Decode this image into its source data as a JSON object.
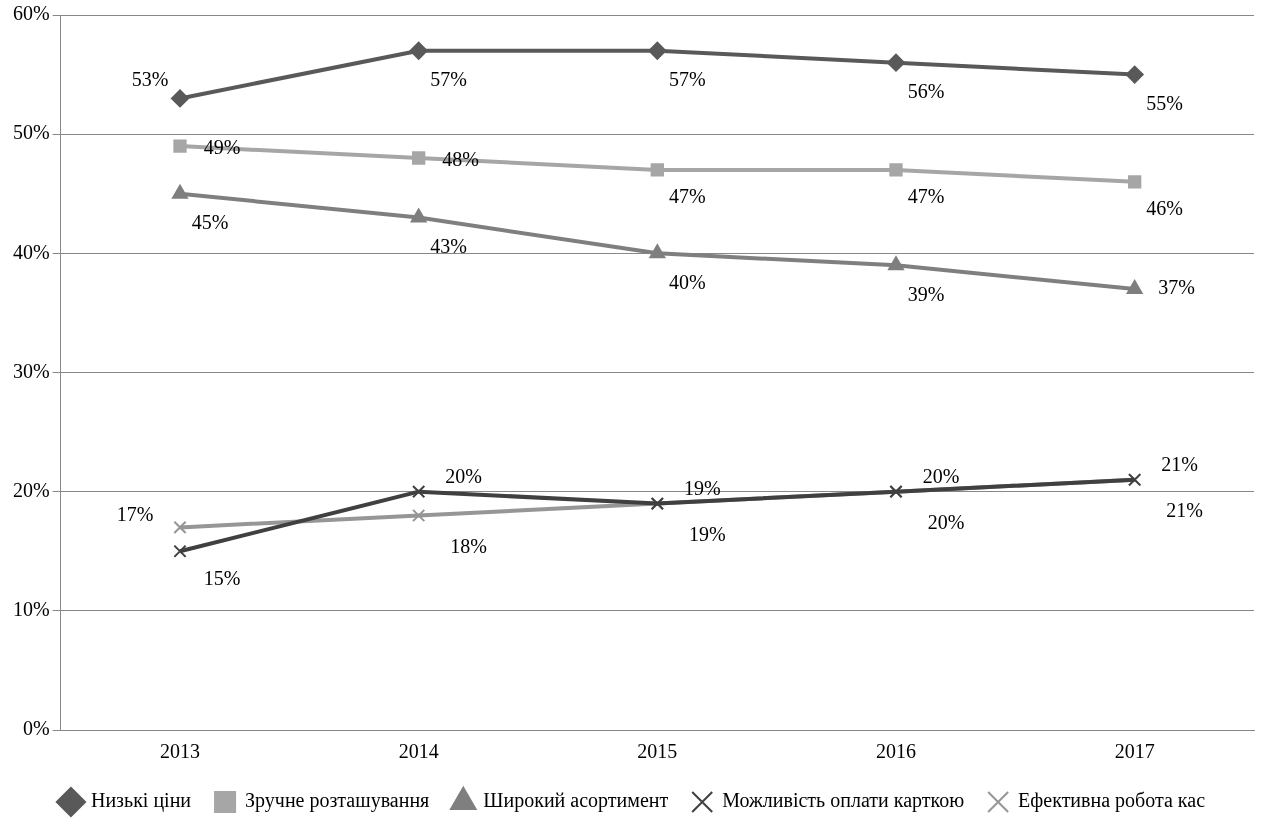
{
  "chart_data": {
    "type": "line",
    "categories": [
      "2013",
      "2014",
      "2015",
      "2016",
      "2017"
    ],
    "series": [
      {
        "name": "Низькі ціни",
        "color": "#595959",
        "marker": "diamond",
        "values": [
          53,
          57,
          57,
          56,
          55
        ],
        "value_labels": [
          "53%",
          "57%",
          "57%",
          "56%",
          "55%"
        ]
      },
      {
        "name": "Зручне розташування",
        "color": "#a6a6a6",
        "marker": "square",
        "values": [
          49,
          48,
          47,
          47,
          46
        ],
        "value_labels": [
          "49%",
          "48%",
          "47%",
          "47%",
          "46%"
        ]
      },
      {
        "name": "Широкий асортимент",
        "color": "#7f7f7f",
        "marker": "triangle",
        "values": [
          45,
          43,
          40,
          39,
          37
        ],
        "value_labels": [
          "45%",
          "43%",
          "40%",
          "39%",
          "37%"
        ]
      },
      {
        "name": "Можливість оплати карткою",
        "color": "#404040",
        "marker": "cross",
        "values": [
          15,
          20,
          19,
          20,
          21
        ],
        "value_labels": [
          "15%",
          "20%",
          "19%",
          "20%",
          "21%"
        ]
      },
      {
        "name": "Ефективна робота кас",
        "color": "#969696",
        "marker": "cross",
        "values": [
          17,
          18,
          19,
          20,
          21
        ],
        "value_labels": [
          "17%",
          "18%",
          "19%",
          "20%",
          "21%"
        ]
      }
    ],
    "ylim": [
      0,
      60
    ],
    "yticks": [
      {
        "value": 0,
        "label": "0%"
      },
      {
        "value": 10,
        "label": "10%"
      },
      {
        "value": 20,
        "label": "20%"
      },
      {
        "value": 30,
        "label": "30%"
      },
      {
        "value": 40,
        "label": "40%"
      },
      {
        "value": 50,
        "label": "50%"
      },
      {
        "value": 60,
        "label": "60%"
      }
    ],
    "grid": "y",
    "legend": "bottom"
  }
}
